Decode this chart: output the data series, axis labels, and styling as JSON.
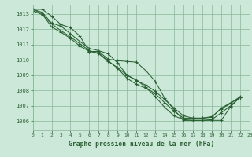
{
  "xlim": [
    0,
    23
  ],
  "ylim": [
    1005.4,
    1013.6
  ],
  "yticks": [
    1006,
    1007,
    1008,
    1009,
    1010,
    1011,
    1012,
    1013
  ],
  "xticks": [
    0,
    1,
    2,
    3,
    4,
    5,
    6,
    7,
    8,
    9,
    10,
    11,
    12,
    13,
    14,
    15,
    16,
    17,
    18,
    19,
    20,
    21,
    22,
    23
  ],
  "background_color": "#cce8d8",
  "grid_color": "#88b898",
  "line_color": "#2a6033",
  "xlabel": "Graphe pression niveau de la mer (hPa)",
  "series": [
    [
      1013.3,
      1013.3,
      1012.85,
      1012.3,
      1012.1,
      1011.55,
      1010.55,
      1010.55,
      1010.05,
      1009.95,
      1009.9,
      1009.85,
      1009.3,
      1008.6,
      1007.5,
      1006.75,
      1006.05,
      1006.05,
      1006.05,
      1006.05,
      1006.05,
      1006.95,
      1007.55
    ],
    [
      1013.3,
      1013.1,
      1012.4,
      1012.2,
      1011.7,
      1011.2,
      1010.75,
      1010.6,
      1010.4,
      1009.8,
      1009.0,
      1008.7,
      1008.2,
      1007.6,
      1006.9,
      1006.35,
      1006.1,
      1006.05,
      1006.05,
      1006.1,
      1006.55,
      1007.0,
      1007.55
    ],
    [
      1013.3,
      1013.0,
      1012.15,
      1011.8,
      1011.4,
      1010.9,
      1010.55,
      1010.45,
      1009.95,
      1009.45,
      1008.8,
      1008.4,
      1008.15,
      1007.8,
      1007.2,
      1006.65,
      1006.2,
      1006.2,
      1006.2,
      1006.3,
      1006.8,
      1007.15,
      1007.6
    ],
    [
      1013.2,
      1012.95,
      1012.35,
      1011.9,
      1011.5,
      1011.05,
      1010.6,
      1010.4,
      1009.9,
      1009.5,
      1009.0,
      1008.65,
      1008.35,
      1007.95,
      1007.4,
      1006.85,
      1006.35,
      1006.2,
      1006.2,
      1006.25,
      1006.85,
      1007.2,
      1007.55
    ]
  ]
}
